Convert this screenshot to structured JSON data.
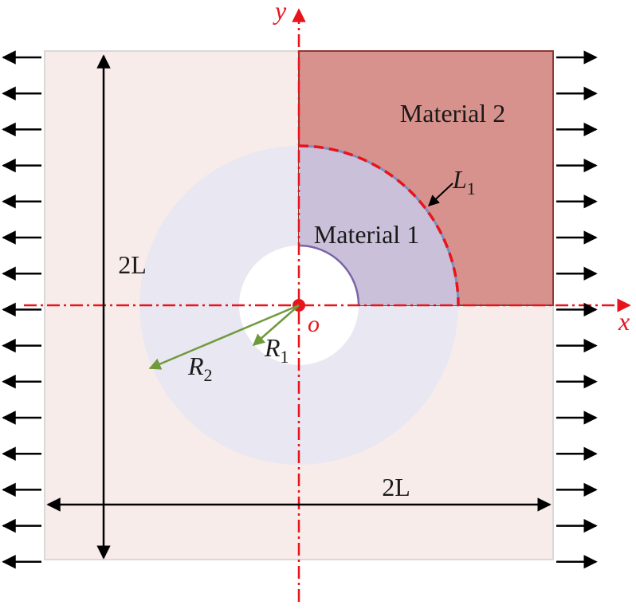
{
  "labels": {
    "material2": "Material 2",
    "material1": "Material 1",
    "interface_L": "L",
    "interface_sub": "1",
    "R1_main": "R",
    "R1_sub": "1",
    "R2_main": "R",
    "R2_sub": "2",
    "height_dim": "2L",
    "width_dim": "2L",
    "axis_x": "x",
    "axis_y": "y",
    "origin": "o"
  },
  "colors": {
    "plate": "#f8eceb",
    "plate_border": "#d9d9d9",
    "annulus": "#e9e7f1",
    "material1_quadrant": "#cbc0d9",
    "material2_quadrant": "#d8928d",
    "material2_border": "#8e3a36",
    "hole": "#ffffff",
    "inner_arc": "#7b63a8",
    "axis": "#e8141c",
    "radius_arrow": "#6f9a3c",
    "arrows": "#000000"
  }
}
